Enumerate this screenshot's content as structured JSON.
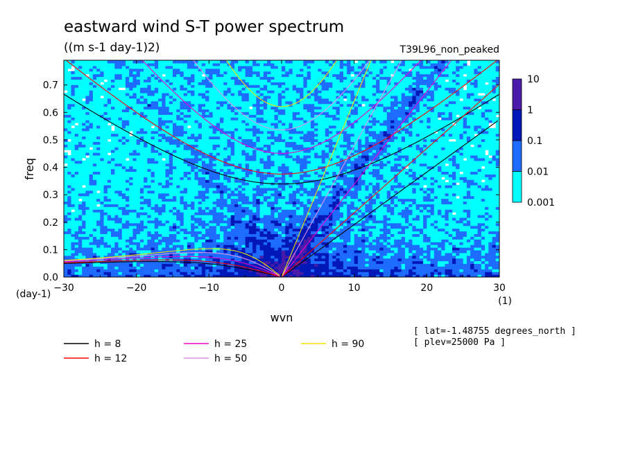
{
  "chart_data": {
    "type": "heatmap",
    "title": "eastward wind S-T power spectrum",
    "subtitle": "((m s-1 day-1)2)",
    "experiment": "T39L96_non_peaked",
    "xlabel": "wvn",
    "ylabel": "freq",
    "x_unit": "(1)",
    "y_unit": "(day-1)",
    "xlim": [
      -30,
      30
    ],
    "ylim": [
      0,
      0.79
    ],
    "x_ticks": [
      -30,
      -20,
      -10,
      0,
      10,
      20,
      30
    ],
    "y_ticks": [
      0.0,
      0.1,
      0.2,
      0.3,
      0.4,
      0.5,
      0.6,
      0.7
    ],
    "x_tick_labels": [
      "−30",
      "−20",
      "−10",
      "0",
      "10",
      "20",
      "30"
    ],
    "y_tick_labels": [
      "0.0",
      "0.1",
      "0.2",
      "0.3",
      "0.4",
      "0.5",
      "0.6",
      "0.7"
    ],
    "colorbar": {
      "labels": [
        "10",
        "1",
        "0.1",
        "0.01",
        "0.001"
      ],
      "levels": [
        0.001,
        0.01,
        0.1,
        1,
        10
      ],
      "colors": [
        "#00ffff",
        "#1e6cff",
        "#0018b8",
        "#4a1aa8"
      ]
    },
    "dispersion_curves": [
      {
        "label": "h =  8",
        "h": 8,
        "color": "#000000"
      },
      {
        "label": "h = 12",
        "h": 12,
        "color": "#ff0000"
      },
      {
        "label": "h = 25",
        "h": 25,
        "color": "#ee00cc"
      },
      {
        "label": "h = 50",
        "h": 50,
        "color": "#e090e8"
      },
      {
        "label": "h = 90",
        "h": 90,
        "color": "#f0e000"
      }
    ],
    "annotations": [
      "[ lat=-1.48755 degrees_north ]",
      "[ plev=25000 Pa ]"
    ]
  }
}
